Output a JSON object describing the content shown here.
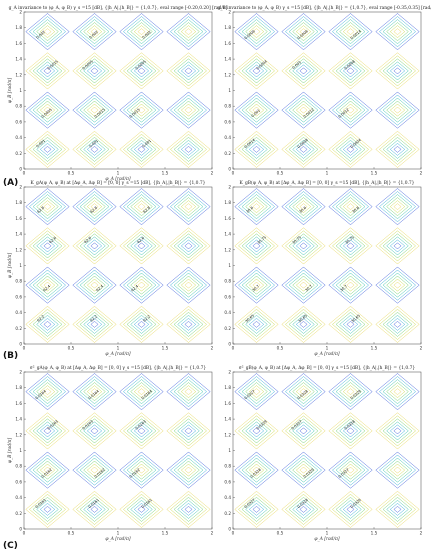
{
  "panel_letters": [
    "(A)",
    "(B)",
    "(C)"
  ],
  "chart_data": [
    {
      "type": "contour",
      "title": "g_A invariance to (φ_A, φ_B) γ_s =15 [dB], {|h_A|,|h_B|} = {1,0.7}, eval range [-0.20,0.20] [rad/π]",
      "xlabel": "φ_A [rad/π]",
      "ylabel": "φ_B [rad/π]",
      "xlim": [
        0,
        2
      ],
      "ylim": [
        0,
        2
      ],
      "xticks": [
        0,
        0.5,
        1,
        1.5,
        2
      ],
      "yticks": [
        0,
        0.2,
        0.4,
        0.6,
        0.8,
        1,
        1.2,
        1.4,
        1.6,
        1.8,
        2
      ],
      "contour_labels": [
        "0.001",
        "0.0005",
        "0.0015",
        "0.002",
        "0.001",
        "0.0015",
        "0.0005",
        "0.002",
        "0.001",
        "0.0015",
        "0.0005",
        "0.002"
      ]
    },
    {
      "type": "contour",
      "title": "g_B invariance to (φ_A, φ_B) γ_s =15 [dB], {|h_A|,|h_B|} = {1,0.7}, eval range [-0.35,0.35] [rad/π]",
      "xlabel": "",
      "ylabel": "",
      "xlim": [
        0,
        2
      ],
      "ylim": [
        0,
        2
      ],
      "xticks": [
        0,
        0.5,
        1,
        1.5,
        2
      ],
      "yticks": [
        0,
        0.2,
        0.4,
        0.6,
        0.8,
        1,
        1.2,
        1.4,
        1.6,
        1.8,
        2
      ],
      "contour_labels": [
        "0.0014",
        "0.001",
        "0.0004",
        "0.0006",
        "0.0008",
        "0.0012",
        "0.001",
        "0.0006",
        "0.0004",
        "0.0012",
        "0.0008",
        "0.0014"
      ]
    },
    {
      "type": "contour",
      "title": "K_gA(φ_A, φ_B) at [Δφ_A, Δφ_B] = [0, 0] γ_s =15 [dB], {|h_A|,|h_B|} = {1,0.7}",
      "xlabel": "φ_A [rad/π]",
      "ylabel": "φ_B [rad/π]",
      "xlim": [
        0,
        2
      ],
      "ylim": [
        0,
        2
      ],
      "xticks": [
        0,
        0.5,
        1,
        1.5,
        2
      ],
      "yticks": [
        0,
        0.2,
        0.4,
        0.6,
        0.8,
        1,
        1.2,
        1.4,
        1.6,
        1.8,
        2
      ],
      "contour_labels": [
        "62.2",
        "62.4",
        "62.6",
        "62.8",
        "62.2",
        "62.4",
        "62.6",
        "62.8",
        "62.2",
        "62.4",
        "62.6",
        "62.8"
      ]
    },
    {
      "type": "contour",
      "title": "K_gB(φ_A, φ_B) at [Δφ_A, Δφ_B] = [0, 0] γ_s =15 [dB], {|h_A|,|h_B|} = {1,0.7}",
      "xlabel": "φ_A [rad/π]",
      "ylabel": "",
      "xlim": [
        0,
        2
      ],
      "ylim": [
        0,
        2
      ],
      "xticks": [
        0,
        0.5,
        1,
        1.5,
        2
      ],
      "yticks": [
        0,
        0.2,
        0.4,
        0.6,
        0.8,
        1,
        1.2,
        1.4,
        1.6,
        1.8,
        2
      ],
      "contour_labels": [
        "30.65",
        "30.7",
        "30.75",
        "30.6",
        "30.65",
        "30.7",
        "30.75",
        "30.6",
        "30.65",
        "30.7",
        "30.75",
        "30.6"
      ]
    },
    {
      "type": "contour",
      "title": "σ²_gA(φ_A, φ_B) at [Δφ_A, Δφ_B] = [0, 0] γ_s =15 [dB], {|h_A|,|h_B|} = {1,0.7}",
      "xlabel": "φ_A [rad/π]",
      "ylabel": "φ_B [rad/π]",
      "xlim": [
        0,
        2
      ],
      "ylim": [
        0,
        2
      ],
      "xticks": [
        0,
        0.5,
        1,
        1.5,
        2
      ],
      "yticks": [
        0,
        0.2,
        0.4,
        0.6,
        0.8,
        1,
        1.2,
        1.4,
        1.6,
        1.8,
        2
      ],
      "contour_labels": [
        "0.0161",
        "0.0162",
        "0.0163",
        "0.0164",
        "0.0161",
        "0.0162",
        "0.0163",
        "0.0164",
        "0.0161",
        "0.0162",
        "0.0163",
        "0.0164"
      ]
    },
    {
      "type": "contour",
      "title": "σ²_gB(φ_A, φ_B) at [Δφ_A, Δφ_B] = [0, 0] γ_s =15 [dB], {|h_A|,|h_B|} = {1,0.7}",
      "xlabel": "φ_A [rad/π]",
      "ylabel": "",
      "xlim": [
        0,
        2
      ],
      "ylim": [
        0,
        2
      ],
      "xticks": [
        0,
        0.5,
        1,
        1.5,
        2
      ],
      "yticks": [
        0,
        0.2,
        0.4,
        0.6,
        0.8,
        1,
        1.2,
        1.4,
        1.6,
        1.8,
        2
      ],
      "contour_labels": [
        "0.0327",
        "0.0328",
        "0.0329",
        "0.0327",
        "0.0328",
        "0.0329",
        "0.0327",
        "0.0328",
        "0.0329",
        "0.0327",
        "0.0328",
        "0.0329"
      ]
    }
  ]
}
